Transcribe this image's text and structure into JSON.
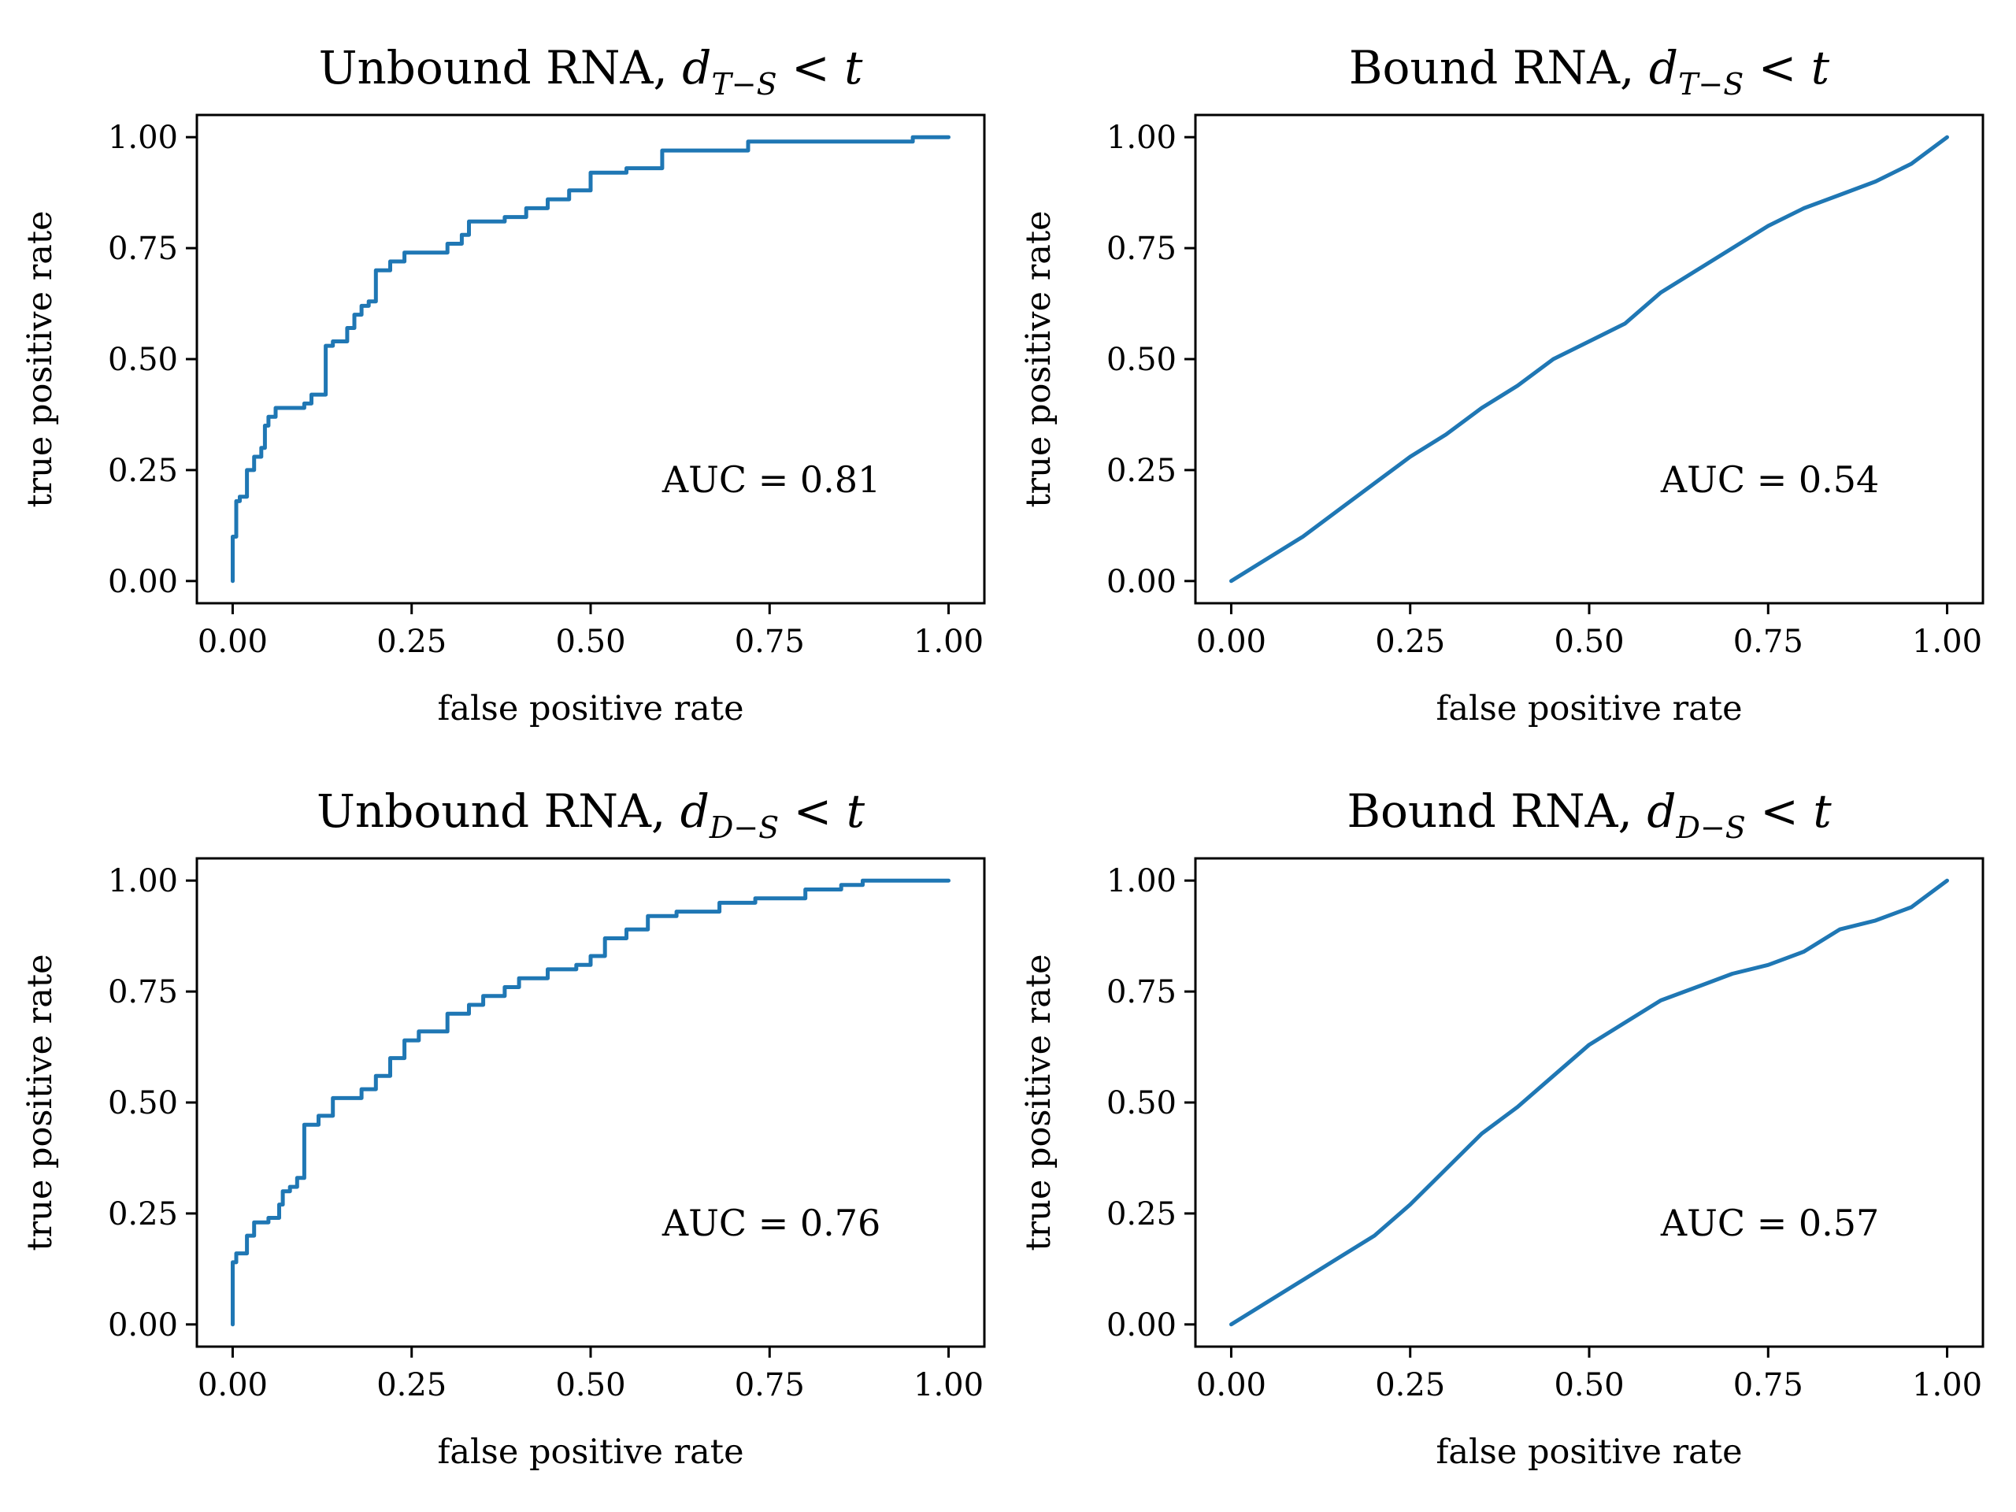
{
  "figure": {
    "line_color": "#1f77b4",
    "xlabel": "false positive rate",
    "ylabel": "true positive rate"
  },
  "chart_data": [
    {
      "type": "line",
      "title": "Unbound RNA, ",
      "title_math": "d",
      "title_sub": "T−S",
      "title_tail": " < t",
      "xlabel": "false positive rate",
      "ylabel": "true positive rate",
      "xlim": [
        -0.05,
        1.05
      ],
      "ylim": [
        -0.05,
        1.05
      ],
      "xticks": [
        "0.00",
        "0.25",
        "0.50",
        "0.75",
        "1.00"
      ],
      "yticks": [
        "0.00",
        "0.25",
        "0.50",
        "0.75",
        "1.00"
      ],
      "annotation": "AUC = 0.81",
      "step": true,
      "x": [
        0,
        0,
        0.005,
        0.005,
        0.01,
        0.01,
        0.02,
        0.02,
        0.03,
        0.03,
        0.04,
        0.04,
        0.045,
        0.045,
        0.05,
        0.05,
        0.06,
        0.06,
        0.1,
        0.1,
        0.11,
        0.11,
        0.13,
        0.13,
        0.14,
        0.14,
        0.16,
        0.16,
        0.17,
        0.17,
        0.18,
        0.18,
        0.19,
        0.19,
        0.2,
        0.2,
        0.22,
        0.22,
        0.24,
        0.24,
        0.3,
        0.3,
        0.32,
        0.32,
        0.33,
        0.33,
        0.38,
        0.38,
        0.41,
        0.41,
        0.44,
        0.44,
        0.47,
        0.47,
        0.5,
        0.5,
        0.55,
        0.55,
        0.6,
        0.6,
        0.72,
        0.72,
        0.95,
        0.95,
        1.0
      ],
      "y": [
        0,
        0.1,
        0.1,
        0.18,
        0.18,
        0.19,
        0.19,
        0.25,
        0.25,
        0.28,
        0.28,
        0.3,
        0.3,
        0.35,
        0.35,
        0.37,
        0.37,
        0.39,
        0.39,
        0.4,
        0.4,
        0.42,
        0.42,
        0.53,
        0.53,
        0.54,
        0.54,
        0.57,
        0.57,
        0.6,
        0.6,
        0.62,
        0.62,
        0.63,
        0.63,
        0.7,
        0.7,
        0.72,
        0.72,
        0.74,
        0.74,
        0.76,
        0.76,
        0.78,
        0.78,
        0.81,
        0.81,
        0.82,
        0.82,
        0.84,
        0.84,
        0.86,
        0.86,
        0.88,
        0.88,
        0.92,
        0.92,
        0.93,
        0.93,
        0.97,
        0.97,
        0.99,
        0.99,
        1.0,
        1.0
      ]
    },
    {
      "type": "line",
      "title": "Bound RNA, ",
      "title_math": "d",
      "title_sub": "T−S",
      "title_tail": " < t",
      "xlabel": "false positive rate",
      "ylabel": "true positive rate",
      "xlim": [
        -0.05,
        1.05
      ],
      "ylim": [
        -0.05,
        1.05
      ],
      "xticks": [
        "0.00",
        "0.25",
        "0.50",
        "0.75",
        "1.00"
      ],
      "yticks": [
        "0.00",
        "0.25",
        "0.50",
        "0.75",
        "1.00"
      ],
      "annotation": "AUC = 0.54",
      "step": false,
      "x": [
        0,
        0.05,
        0.1,
        0.15,
        0.2,
        0.25,
        0.3,
        0.35,
        0.4,
        0.45,
        0.5,
        0.55,
        0.6,
        0.65,
        0.7,
        0.75,
        0.8,
        0.85,
        0.9,
        0.95,
        1.0
      ],
      "y": [
        0,
        0.05,
        0.1,
        0.16,
        0.22,
        0.28,
        0.33,
        0.39,
        0.44,
        0.5,
        0.54,
        0.58,
        0.65,
        0.7,
        0.75,
        0.8,
        0.84,
        0.87,
        0.9,
        0.94,
        1.0
      ]
    },
    {
      "type": "line",
      "title": "Unbound RNA, ",
      "title_math": "d",
      "title_sub": "D−S",
      "title_tail": " < t",
      "xlabel": "false positive rate",
      "ylabel": "true positive rate",
      "xlim": [
        -0.05,
        1.05
      ],
      "ylim": [
        -0.05,
        1.05
      ],
      "xticks": [
        "0.00",
        "0.25",
        "0.50",
        "0.75",
        "1.00"
      ],
      "yticks": [
        "0.00",
        "0.25",
        "0.50",
        "0.75",
        "1.00"
      ],
      "annotation": "AUC = 0.76",
      "step": true,
      "x": [
        0,
        0,
        0.005,
        0.005,
        0.02,
        0.02,
        0.03,
        0.03,
        0.05,
        0.05,
        0.065,
        0.065,
        0.07,
        0.07,
        0.08,
        0.08,
        0.09,
        0.09,
        0.1,
        0.1,
        0.12,
        0.12,
        0.14,
        0.14,
        0.18,
        0.18,
        0.2,
        0.2,
        0.22,
        0.22,
        0.24,
        0.24,
        0.26,
        0.26,
        0.3,
        0.3,
        0.33,
        0.33,
        0.35,
        0.35,
        0.38,
        0.38,
        0.4,
        0.4,
        0.44,
        0.44,
        0.48,
        0.48,
        0.5,
        0.5,
        0.52,
        0.52,
        0.55,
        0.55,
        0.58,
        0.58,
        0.62,
        0.62,
        0.68,
        0.68,
        0.73,
        0.73,
        0.8,
        0.8,
        0.85,
        0.85,
        0.88,
        0.88,
        1.0
      ],
      "y": [
        0,
        0.14,
        0.14,
        0.16,
        0.16,
        0.2,
        0.2,
        0.23,
        0.23,
        0.24,
        0.24,
        0.27,
        0.27,
        0.3,
        0.3,
        0.31,
        0.31,
        0.33,
        0.33,
        0.45,
        0.45,
        0.47,
        0.47,
        0.51,
        0.51,
        0.53,
        0.53,
        0.56,
        0.56,
        0.6,
        0.6,
        0.64,
        0.64,
        0.66,
        0.66,
        0.7,
        0.7,
        0.72,
        0.72,
        0.74,
        0.74,
        0.76,
        0.76,
        0.78,
        0.78,
        0.8,
        0.8,
        0.81,
        0.81,
        0.83,
        0.83,
        0.87,
        0.87,
        0.89,
        0.89,
        0.92,
        0.92,
        0.93,
        0.93,
        0.95,
        0.95,
        0.96,
        0.96,
        0.98,
        0.98,
        0.99,
        0.99,
        1.0,
        1.0
      ]
    },
    {
      "type": "line",
      "title": "Bound RNA, ",
      "title_math": "d",
      "title_sub": "D−S",
      "title_tail": " < t",
      "xlabel": "false positive rate",
      "ylabel": "true positive rate",
      "xlim": [
        -0.05,
        1.05
      ],
      "ylim": [
        -0.05,
        1.05
      ],
      "xticks": [
        "0.00",
        "0.25",
        "0.50",
        "0.75",
        "1.00"
      ],
      "yticks": [
        "0.00",
        "0.25",
        "0.50",
        "0.75",
        "1.00"
      ],
      "annotation": "AUC = 0.57",
      "step": false,
      "x": [
        0,
        0.05,
        0.1,
        0.15,
        0.2,
        0.25,
        0.3,
        0.35,
        0.4,
        0.45,
        0.5,
        0.55,
        0.6,
        0.65,
        0.7,
        0.75,
        0.8,
        0.85,
        0.9,
        0.95,
        1.0
      ],
      "y": [
        0,
        0.05,
        0.1,
        0.15,
        0.2,
        0.27,
        0.35,
        0.43,
        0.49,
        0.56,
        0.63,
        0.68,
        0.73,
        0.76,
        0.79,
        0.81,
        0.84,
        0.89,
        0.91,
        0.94,
        1.0
      ]
    }
  ]
}
